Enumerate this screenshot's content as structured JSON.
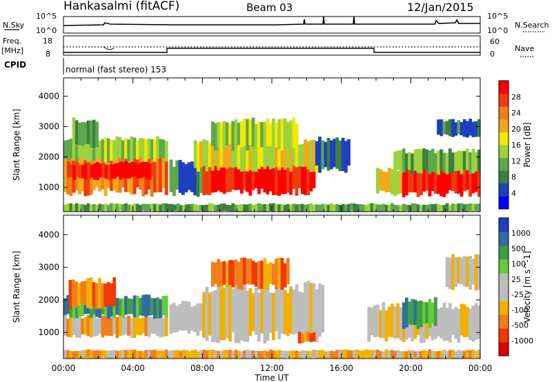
{
  "header": {
    "title": "Hankasalmi (fitACF)",
    "beam": "Beam 03",
    "date": "12/Jan/2015"
  },
  "top_panel": {
    "left_label": "N.Sky",
    "right_label": "N.Search",
    "left_ticks": [
      "10^5",
      "10^0"
    ],
    "right_ticks": [
      "10^5",
      "10^0"
    ]
  },
  "freq_panel": {
    "left_label_1": "Freq.",
    "left_label_2": "[MHz]",
    "right_label": "Nave",
    "left_ticks": [
      "18",
      "8"
    ],
    "right_ticks": [
      "60",
      "0"
    ],
    "cpid_label": "CPID",
    "cpid_value": "normal (fast stereo) 153"
  },
  "colors": {
    "power": [
      "#0000ff",
      "#1e3fbf",
      "#3e7f3f",
      "#5ea84c",
      "#9cd23c",
      "#f2e800",
      "#f2a81e",
      "#f07e1c",
      "#ee3c0e",
      "#ff0000"
    ],
    "velocity": [
      "#e00000",
      "#f03a00",
      "#f07e1c",
      "#f2b000",
      "#bdbdbd",
      "#bdbdbd",
      "#66cc33",
      "#3e9e4a",
      "#2f6fa0",
      "#1e3fbf"
    ]
  },
  "chart_data": [
    {
      "type": "heatmap",
      "name": "power-panel",
      "ylabel": "Slant Range [km]",
      "yticks": [
        "4000",
        "3000",
        "2000",
        "1000"
      ],
      "ylim": [
        200,
        4600
      ],
      "colorbar_label": "Power [dB]",
      "colorbar_ticks": [
        "28",
        "24",
        "20",
        "16",
        "12",
        "8",
        "4"
      ],
      "colorbar_range": [
        0,
        32
      ],
      "bands": [
        {
          "t0": 0.0,
          "t1": 6.0,
          "r0": 850,
          "r1": 2100,
          "level": 7
        },
        {
          "t0": 0.2,
          "t1": 5.2,
          "r0": 1300,
          "r1": 1800,
          "level": 9
        },
        {
          "t0": 0.0,
          "t1": 6.0,
          "r0": 1900,
          "r1": 2600,
          "level": 4
        },
        {
          "t0": 0.5,
          "t1": 2.0,
          "r0": 2400,
          "r1": 3200,
          "level": 3
        },
        {
          "t0": 6.1,
          "t1": 8.0,
          "r0": 800,
          "r1": 1800,
          "level": 2
        },
        {
          "t0": 8.0,
          "t1": 14.5,
          "r0": 850,
          "r1": 1900,
          "level": 9
        },
        {
          "t0": 7.5,
          "t1": 15.0,
          "r0": 1600,
          "r1": 2500,
          "level": 5
        },
        {
          "t0": 8.5,
          "t1": 13.5,
          "r0": 2300,
          "r1": 3200,
          "level": 4
        },
        {
          "t0": 14.5,
          "t1": 16.5,
          "r0": 1600,
          "r1": 2600,
          "level": 2
        },
        {
          "t0": 18.0,
          "t1": 19.5,
          "r0": 800,
          "r1": 1600,
          "level": 5
        },
        {
          "t0": 19.5,
          "t1": 24.0,
          "r0": 800,
          "r1": 1800,
          "level": 9
        },
        {
          "t0": 19.0,
          "t1": 24.0,
          "r0": 1500,
          "r1": 2200,
          "level": 3
        },
        {
          "t0": 21.5,
          "t1": 24.0,
          "r0": 2700,
          "r1": 3200,
          "level": 2
        },
        {
          "t0": 0.0,
          "t1": 24.0,
          "r0": 200,
          "r1": 450,
          "level": 3
        }
      ]
    },
    {
      "type": "heatmap",
      "name": "velocity-panel",
      "ylabel": "Slant Range [km]",
      "yticks": [
        "4000",
        "3000",
        "2000",
        "1000"
      ],
      "ylim": [
        200,
        4600
      ],
      "colorbar_label": "Velocity [m s^-1]",
      "colorbar_ticks": [
        "1000",
        "500",
        "100",
        "25",
        "-25",
        "-100",
        "-500",
        "-1000"
      ],
      "xlabel": "Time UT",
      "xticks": [
        "00:00",
        "04:00",
        "08:00",
        "12:00",
        "16:00",
        "20:00",
        "00:00"
      ],
      "xlim": [
        0,
        24
      ],
      "bands": [
        {
          "t0": 0.0,
          "t1": 6.0,
          "r0": 900,
          "r1": 1500,
          "level": 3
        },
        {
          "t0": 0.0,
          "t1": 6.0,
          "r0": 1500,
          "r1": 2100,
          "level": 7
        },
        {
          "t0": 0.3,
          "t1": 3.0,
          "r0": 1800,
          "r1": 2600,
          "level": 2
        },
        {
          "t0": 6.1,
          "t1": 8.5,
          "r0": 1000,
          "r1": 1900,
          "level": 4
        },
        {
          "t0": 8.0,
          "t1": 15.0,
          "r0": 850,
          "r1": 2400,
          "level": 4
        },
        {
          "t0": 8.5,
          "t1": 13.0,
          "r0": 2400,
          "r1": 3200,
          "level": 2
        },
        {
          "t0": 13.5,
          "t1": 14.5,
          "r0": 700,
          "r1": 1000,
          "level": 2
        },
        {
          "t0": 17.5,
          "t1": 24.0,
          "r0": 800,
          "r1": 1800,
          "level": 4
        },
        {
          "t0": 19.5,
          "t1": 21.5,
          "r0": 1200,
          "r1": 2000,
          "level": 7
        },
        {
          "t0": 22.0,
          "t1": 24.0,
          "r0": 2400,
          "r1": 3300,
          "level": 4
        },
        {
          "t0": 0.0,
          "t1": 24.0,
          "r0": 200,
          "r1": 450,
          "level": 3
        }
      ]
    }
  ]
}
